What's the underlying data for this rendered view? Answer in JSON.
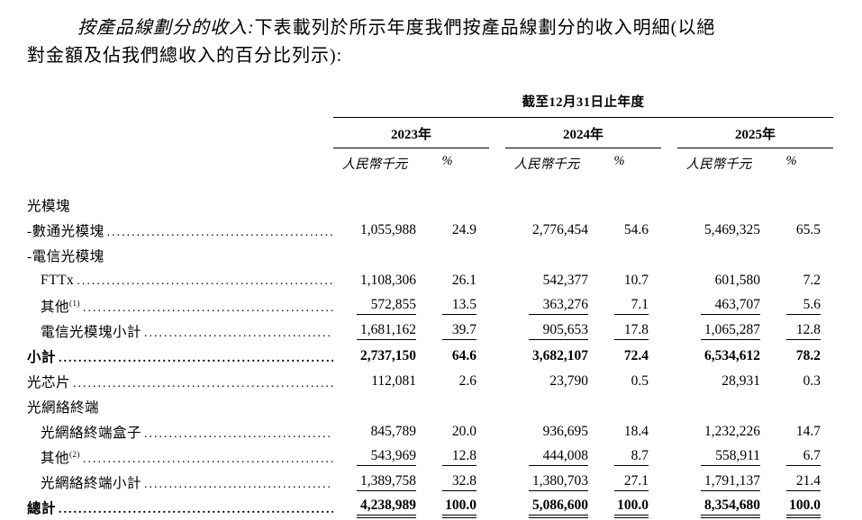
{
  "intro": {
    "lead": "按產品線劃分的收入:",
    "line1_rest": "下表載列於所示年度我們按產品線劃分的收入明細(以絕",
    "line2": "對金額及佔我們總收入的百分比列示):"
  },
  "table": {
    "period_header": "截至12月31日止年度",
    "year_groups": [
      {
        "year": "2023年",
        "amount_header": "人民幣千元",
        "pct_header": "%"
      },
      {
        "year": "2024年",
        "amount_header": "人民幣千元",
        "pct_header": "%"
      },
      {
        "year": "2025年",
        "amount_header": "人民幣千元",
        "pct_header": "%"
      }
    ],
    "rows": [
      {
        "label": "光模塊",
        "indent": 0,
        "section": true
      },
      {
        "label": "-數通光模塊",
        "indent": 0,
        "values": [
          "1,055,988",
          "24.9",
          "2,776,454",
          "54.6",
          "5,469,325",
          "65.5"
        ]
      },
      {
        "label": "-電信光模塊",
        "indent": 0,
        "section": true
      },
      {
        "label": "FTTx",
        "indent": 1,
        "values": [
          "1,108,306",
          "26.1",
          "542,377",
          "10.7",
          "601,580",
          "7.2"
        ]
      },
      {
        "label": "其他",
        "sup": "(1)",
        "indent": 1,
        "rule_below": "single",
        "values": [
          "572,855",
          "13.5",
          "363,276",
          "7.1",
          "463,707",
          "5.6"
        ]
      },
      {
        "label": "電信光模塊小計",
        "indent": 1,
        "rule_below": "single",
        "values": [
          "1,681,162",
          "39.7",
          "905,653",
          "17.8",
          "1,065,287",
          "12.8"
        ]
      },
      {
        "label": "小計",
        "indent": 0,
        "bold": true,
        "values": [
          "2,737,150",
          "64.6",
          "3,682,107",
          "72.4",
          "6,534,612",
          "78.2"
        ]
      },
      {
        "label": "光芯片",
        "indent": 0,
        "values": [
          "112,081",
          "2.6",
          "23,790",
          "0.5",
          "28,931",
          "0.3"
        ]
      },
      {
        "label": "光網絡終端",
        "indent": 0,
        "section": true
      },
      {
        "label": "光網絡終端盒子",
        "indent": 1,
        "values": [
          "845,789",
          "20.0",
          "936,695",
          "18.4",
          "1,232,226",
          "14.7"
        ]
      },
      {
        "label": "其他",
        "sup": "(2)",
        "indent": 1,
        "rule_below": "single",
        "values": [
          "543,969",
          "12.8",
          "444,008",
          "8.7",
          "558,911",
          "6.7"
        ]
      },
      {
        "label": "光網絡終端小計",
        "indent": 1,
        "rule_below": "single",
        "values": [
          "1,389,758",
          "32.8",
          "1,380,703",
          "27.1",
          "1,791,137",
          "21.4"
        ]
      },
      {
        "label": "總計",
        "indent": 0,
        "bold": true,
        "rule_below": "double",
        "values": [
          "4,238,989",
          "100.0",
          "5,086,600",
          "100.0",
          "8,354,680",
          "100.0"
        ]
      }
    ]
  }
}
